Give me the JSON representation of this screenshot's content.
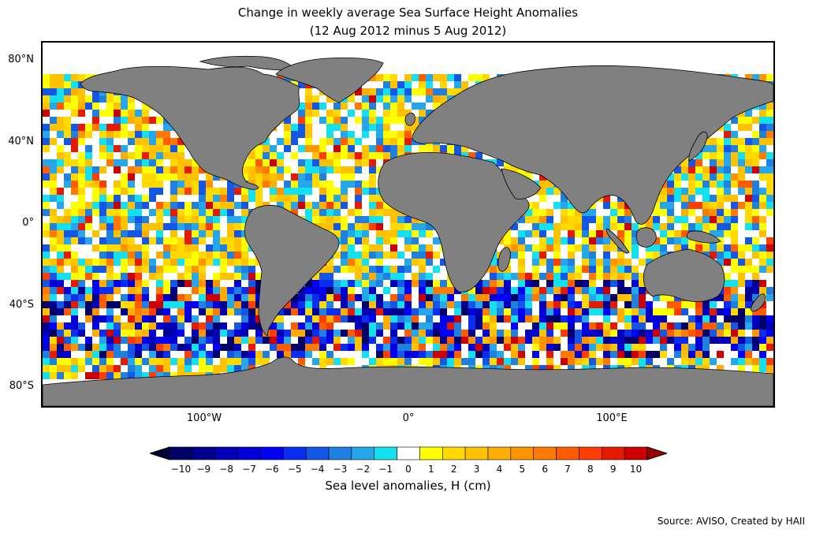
{
  "title_line1": "Change in weekly average Sea Surface Height Anomalies",
  "title_line2": "(12 Aug 2012 minus 5 Aug 2012)",
  "map": {
    "land_color": "#808080",
    "ocean_color": "#ffffff",
    "lat_labels": [
      "80°N",
      "40°N",
      "0°",
      "40°S",
      "80°S"
    ],
    "lon_labels": [
      "100°W",
      "0°",
      "100°E"
    ]
  },
  "colorbar": {
    "label": "Sea level anomalies, H (cm)",
    "ticks": [
      "−10",
      "−9",
      "−8",
      "−7",
      "−6",
      "−5",
      "−4",
      "−3",
      "−2",
      "−1",
      "0",
      "1",
      "2",
      "3",
      "4",
      "5",
      "6",
      "7",
      "8",
      "9",
      "10"
    ],
    "colors": [
      "#000066",
      "#00008f",
      "#0000b8",
      "#0000d6",
      "#0000f5",
      "#0a2ef0",
      "#1457e6",
      "#1f80e0",
      "#26a6eb",
      "#14e0f0",
      "#ffffff",
      "#ffff00",
      "#ffd900",
      "#ffc200",
      "#ffad00",
      "#ff9400",
      "#ff7a00",
      "#ff5c00",
      "#ff3d00",
      "#e61a00",
      "#cc0000"
    ],
    "under_color": "#000033",
    "over_color": "#990000"
  },
  "source": "Source: AVISO, Created by HAII"
}
